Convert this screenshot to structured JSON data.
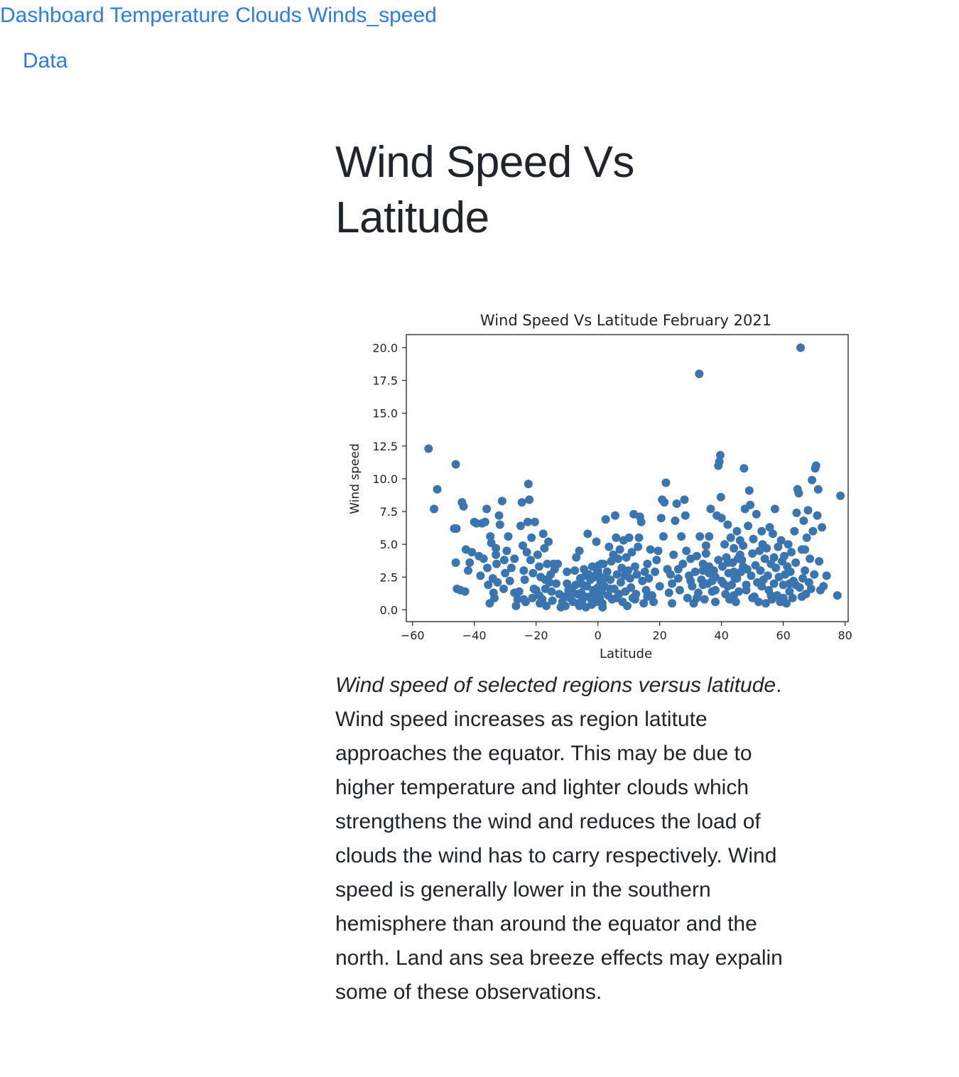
{
  "nav": {
    "links": [
      "Dashboard",
      "Temperature",
      "Clouds",
      "Winds_speed"
    ],
    "data_link": "Data"
  },
  "page": {
    "title": "Wind Speed Vs Latitude"
  },
  "caption": {
    "emphasis": "Wind speed of selected regions versus latitude",
    "text": ". Wind speed increases as region latitute approaches the equator. This may be due to higher temperature and lighter clouds which strengthens the wind and reduces the load of clouds the wind has to carry respectively. Wind speed is generally lower in the southern hemisphere than around the equator and the north. Land ans sea breeze effects may expalin some of these observations."
  },
  "colors": {
    "link": "#2f7be6",
    "marker": "#3a75b0",
    "text": "#212529"
  },
  "chart_data": {
    "type": "scatter",
    "title": "Wind Speed Vs Latitude February 2021",
    "xlabel": "Latitude",
    "ylabel": "Wind speed",
    "xlim": [
      -62,
      81
    ],
    "ylim": [
      -0.9,
      21
    ],
    "xticks": [
      -60,
      -40,
      -20,
      0,
      20,
      40,
      60,
      80
    ],
    "xtick_labels": [
      "−60",
      "−40",
      "−20",
      "0",
      "20",
      "40",
      "60",
      "80"
    ],
    "yticks": [
      0,
      2.5,
      5,
      7.5,
      10,
      12.5,
      15,
      17.5,
      20
    ],
    "ytick_labels": [
      "0.0",
      "2.5",
      "5.0",
      "7.5",
      "10.0",
      "12.5",
      "15.0",
      "17.5",
      "20.0"
    ],
    "grid": false,
    "legend": "none",
    "points": [
      [
        -54.8,
        12.3
      ],
      [
        -53,
        7.7
      ],
      [
        -52,
        9.2
      ],
      [
        -46,
        11.1
      ],
      [
        -46.5,
        6.2
      ],
      [
        -45.8,
        6.2
      ],
      [
        -44,
        8.2
      ],
      [
        -43.5,
        7.9
      ],
      [
        -46,
        3.6
      ],
      [
        -45.6,
        1.6
      ],
      [
        -44.5,
        1.5
      ],
      [
        -43,
        1.4
      ],
      [
        -42.7,
        4.6
      ],
      [
        -42,
        3.0
      ],
      [
        -41.5,
        3.6
      ],
      [
        -40.8,
        4.4
      ],
      [
        -40,
        6.7
      ],
      [
        -39.3,
        6.6
      ],
      [
        -38.5,
        4.1
      ],
      [
        -38,
        2.6
      ],
      [
        -37.5,
        6.6
      ],
      [
        -36.5,
        6.7
      ],
      [
        -36,
        7.7
      ],
      [
        -35.8,
        3.2
      ],
      [
        -35.5,
        1.9
      ],
      [
        -35,
        0.5
      ],
      [
        -34.8,
        5.6
      ],
      [
        -34.5,
        5.1
      ],
      [
        -34,
        2.4
      ],
      [
        -33.8,
        1.3
      ],
      [
        -33.5,
        0.9
      ],
      [
        -33,
        4.2
      ],
      [
        -32.8,
        3.5
      ],
      [
        -32.5,
        2.1
      ],
      [
        -32,
        7.2
      ],
      [
        -31.7,
        6.5
      ],
      [
        -31,
        8.3
      ],
      [
        -30.5,
        1.6
      ],
      [
        -30.3,
        3.8
      ],
      [
        -30,
        2.8
      ],
      [
        -29.5,
        4.5
      ],
      [
        -29,
        5.6
      ],
      [
        -28.5,
        2.2
      ],
      [
        -28,
        3.2
      ],
      [
        -27,
        3.9
      ],
      [
        -26.5,
        0.3
      ],
      [
        -26,
        0.8
      ],
      [
        -25.5,
        1.4
      ],
      [
        -25,
        6.4
      ],
      [
        -24.6,
        8.2
      ],
      [
        -24.3,
        4.9
      ],
      [
        -24,
        3.0
      ],
      [
        -23.7,
        2.3
      ],
      [
        -23.4,
        0.6
      ],
      [
        -23,
        4.4
      ],
      [
        -22.7,
        6.7
      ],
      [
        -22.5,
        9.6
      ],
      [
        -22.2,
        8.4
      ],
      [
        -21.8,
        3.8
      ],
      [
        -21.5,
        5.5
      ],
      [
        -21.2,
        0.9
      ],
      [
        -21,
        2.8
      ],
      [
        -20.7,
        1.6
      ],
      [
        -20.4,
        6.7
      ],
      [
        -20,
        1.5
      ],
      [
        -19.5,
        4.2
      ],
      [
        -19,
        3.3
      ],
      [
        -18.8,
        0.5
      ],
      [
        -18.5,
        2.5
      ],
      [
        -18,
        0.8
      ],
      [
        -17.7,
        5.8
      ],
      [
        -17.3,
        4.7
      ],
      [
        -17,
        1.6
      ],
      [
        -16.7,
        0.3
      ],
      [
        -16.4,
        3.5
      ],
      [
        -16,
        5.2
      ],
      [
        -15.7,
        2.1
      ],
      [
        -15.3,
        2.7
      ],
      [
        -15,
        1.4
      ],
      [
        -14.7,
        0.7
      ],
      [
        -14.4,
        3.5
      ],
      [
        -14,
        3.1
      ],
      [
        -13.5,
        2.0
      ],
      [
        -13,
        3.5
      ],
      [
        -12.5,
        1.2
      ],
      [
        -12,
        0.2
      ],
      [
        -11.5,
        0.6
      ],
      [
        -11,
        1.0
      ],
      [
        -10.5,
        0.3
      ],
      [
        -10,
        2.9
      ],
      [
        -9.5,
        1.5
      ],
      [
        -9,
        0.9
      ],
      [
        -8.5,
        1.6
      ],
      [
        -8,
        0.6
      ],
      [
        -7.5,
        3.0
      ],
      [
        -7.2,
        1.9
      ],
      [
        -7,
        4.0
      ],
      [
        -6.6,
        1.2
      ],
      [
        -6.3,
        0.5
      ],
      [
        -6,
        4.5
      ],
      [
        -5.7,
        2.4
      ],
      [
        -5.4,
        1.3
      ],
      [
        -5.1,
        0.7
      ],
      [
        -4.8,
        1.9
      ],
      [
        -4.5,
        3.1
      ],
      [
        -4.2,
        1.0
      ],
      [
        -3.9,
        0.2
      ],
      [
        -3.6,
        1.8
      ],
      [
        -3.3,
        5.8
      ],
      [
        -3,
        2.7
      ],
      [
        -2.7,
        1.0
      ],
      [
        -2.4,
        2.3
      ],
      [
        -2.1,
        0.8
      ],
      [
        -1.8,
        3.3
      ],
      [
        -1.5,
        1.5
      ],
      [
        -1.2,
        2.5
      ],
      [
        -0.9,
        1.2
      ],
      [
        -0.6,
        0.6
      ],
      [
        -0.3,
        2.8
      ],
      [
        0,
        1.7
      ],
      [
        0.3,
        3.4
      ],
      [
        0.6,
        0.9
      ],
      [
        0.9,
        2.2
      ],
      [
        1.2,
        1.4
      ],
      [
        1.5,
        0.2
      ],
      [
        1.8,
        3.5
      ],
      [
        2.1,
        1.8
      ],
      [
        2.5,
        6.9
      ],
      [
        -0.5,
        5.2
      ],
      [
        0,
        3.0
      ],
      [
        0.4,
        2.6
      ],
      [
        0.8,
        1.9
      ],
      [
        1.1,
        3.5
      ],
      [
        1.4,
        0.5
      ],
      [
        3,
        2.9
      ],
      [
        3.3,
        1.1
      ],
      [
        3.6,
        4.8
      ],
      [
        4,
        2.3
      ],
      [
        4.3,
        3.7
      ],
      [
        4.6,
        0.8
      ],
      [
        5,
        4.2
      ],
      [
        5.3,
        1.6
      ],
      [
        5.6,
        7.2
      ],
      [
        5.9,
        5.5
      ],
      [
        6.2,
        2.7
      ],
      [
        6.5,
        3.9
      ],
      [
        6.8,
        1.2
      ],
      [
        7.1,
        4.6
      ],
      [
        7.4,
        2.1
      ],
      [
        7.7,
        3.2
      ],
      [
        8,
        0.6
      ],
      [
        8.3,
        5.3
      ],
      [
        8.6,
        2.6
      ],
      [
        8.9,
        1.4
      ],
      [
        9.2,
        4.0
      ],
      [
        9.5,
        0.3
      ],
      [
        9.8,
        3.0
      ],
      [
        10.1,
        5.5
      ],
      [
        10.4,
        2.4
      ],
      [
        10.7,
        1.7
      ],
      [
        11,
        4.4
      ],
      [
        11.3,
        0.9
      ],
      [
        11.6,
        7.3
      ],
      [
        12,
        3.3
      ],
      [
        12.3,
        1.2
      ],
      [
        12.6,
        2.7
      ],
      [
        13,
        4.8
      ],
      [
        13.3,
        5.5
      ],
      [
        13.6,
        7.1
      ],
      [
        14,
        6.7
      ],
      [
        14.4,
        2.2
      ],
      [
        14.8,
        0.5
      ],
      [
        15.2,
        2.9
      ],
      [
        15.6,
        1.5
      ],
      [
        16,
        3.5
      ],
      [
        16.5,
        2.4
      ],
      [
        17,
        4.6
      ],
      [
        17.5,
        1.1
      ],
      [
        18,
        0.6
      ],
      [
        18.5,
        2.9
      ],
      [
        19,
        3.8
      ],
      [
        19.5,
        4.5
      ],
      [
        20,
        1.8
      ],
      [
        20.5,
        7.0
      ],
      [
        20.8,
        8.4
      ],
      [
        21.2,
        5.6
      ],
      [
        21.5,
        8.2
      ],
      [
        22,
        9.7
      ],
      [
        22.5,
        3.1
      ],
      [
        23,
        1.3
      ],
      [
        23.5,
        2.7
      ],
      [
        24,
        0.5
      ],
      [
        24.5,
        4.2
      ],
      [
        25,
        6.8
      ],
      [
        25.5,
        8.1
      ],
      [
        26,
        2.4
      ],
      [
        26.5,
        1.5
      ],
      [
        27,
        5.6
      ],
      [
        27.5,
        3.5
      ],
      [
        28,
        8.4
      ],
      [
        28.3,
        7.2
      ],
      [
        28.6,
        4.5
      ],
      [
        29,
        0.9
      ],
      [
        29.5,
        2.6
      ],
      [
        30,
        3.9
      ],
      [
        30.5,
        1.8
      ],
      [
        31,
        0.5
      ],
      [
        31.5,
        2.9
      ],
      [
        32,
        4.1
      ],
      [
        32.5,
        1.3
      ],
      [
        32.8,
        18.0
      ],
      [
        33,
        5.6
      ],
      [
        33.5,
        2.3
      ],
      [
        34,
        3.5
      ],
      [
        34.5,
        0.8
      ],
      [
        35,
        4.3
      ],
      [
        35.5,
        2.0
      ],
      [
        36,
        5.6
      ],
      [
        36.5,
        7.7
      ],
      [
        37,
        1.4
      ],
      [
        37.5,
        3.0
      ],
      [
        38,
        2.5
      ],
      [
        38.5,
        7.2
      ],
      [
        39,
        11.0
      ],
      [
        39.3,
        11.3
      ],
      [
        39.6,
        11.8
      ],
      [
        39.8,
        8.6
      ],
      [
        40,
        7.0
      ],
      [
        40.3,
        3.3
      ],
      [
        40.6,
        2.0
      ],
      [
        41,
        5.0
      ],
      [
        41.3,
        1.2
      ],
      [
        41.6,
        4.0
      ],
      [
        42,
        6.5
      ],
      [
        42.3,
        2.8
      ],
      [
        42.6,
        0.8
      ],
      [
        43,
        5.5
      ],
      [
        43.3,
        1.9
      ],
      [
        43.6,
        3.6
      ],
      [
        44,
        4.7
      ],
      [
        44.3,
        2.4
      ],
      [
        44.6,
        0.6
      ],
      [
        45,
        6.0
      ],
      [
        45.3,
        3.9
      ],
      [
        45.6,
        1.4
      ],
      [
        46,
        5.3
      ],
      [
        46.3,
        2.9
      ],
      [
        46.6,
        3.8
      ],
      [
        47,
        4.9
      ],
      [
        47.3,
        10.8
      ],
      [
        47.6,
        7.7
      ],
      [
        48,
        1.5
      ],
      [
        48.3,
        3.1
      ],
      [
        48.6,
        6.4
      ],
      [
        49,
        9.1
      ],
      [
        49.3,
        8.0
      ],
      [
        49.6,
        2.6
      ],
      [
        50,
        4.3
      ],
      [
        50.3,
        5.4
      ],
      [
        50.6,
        1.0
      ],
      [
        51,
        3.4
      ],
      [
        51.3,
        7.3
      ],
      [
        51.6,
        2.1
      ],
      [
        52,
        0.6
      ],
      [
        52.3,
        4.5
      ],
      [
        52.6,
        3.0
      ],
      [
        53,
        1.8
      ],
      [
        53.3,
        5.0
      ],
      [
        53.6,
        2.3
      ],
      [
        54,
        3.9
      ],
      [
        54.3,
        0.5
      ],
      [
        54.6,
        4.7
      ],
      [
        55,
        2.6
      ],
      [
        55.3,
        1.5
      ],
      [
        55.6,
        6.3
      ],
      [
        56,
        3.5
      ],
      [
        56.3,
        0.8
      ],
      [
        56.6,
        5.8
      ],
      [
        57,
        2.0
      ],
      [
        57.3,
        7.7
      ],
      [
        57.6,
        3.2
      ],
      [
        58,
        1.1
      ],
      [
        58.3,
        4.8
      ],
      [
        58.6,
        2.5
      ],
      [
        59,
        0.6
      ],
      [
        59.3,
        5.3
      ],
      [
        59.6,
        3.7
      ],
      [
        60,
        1.9
      ],
      [
        60.3,
        4.1
      ],
      [
        60.6,
        2.7
      ],
      [
        61,
        0.5
      ],
      [
        61.3,
        3.3
      ],
      [
        61.6,
        5.0
      ],
      [
        62,
        1.4
      ],
      [
        62.3,
        2.9
      ],
      [
        62.6,
        4.4
      ],
      [
        63,
        0.9
      ],
      [
        63.3,
        2.2
      ],
      [
        63.6,
        6.0
      ],
      [
        64,
        3.6
      ],
      [
        64.3,
        7.4
      ],
      [
        64.6,
        9.2
      ],
      [
        65,
        8.9
      ],
      [
        65.3,
        1.7
      ],
      [
        65.6,
        20.0
      ],
      [
        66,
        4.6
      ],
      [
        66.3,
        2.4
      ],
      [
        66.6,
        6.8
      ],
      [
        67,
        3.0
      ],
      [
        67.3,
        1.2
      ],
      [
        67.6,
        5.5
      ],
      [
        68,
        7.6
      ],
      [
        68.3,
        2.1
      ],
      [
        68.6,
        3.9
      ],
      [
        69,
        1.6
      ],
      [
        69.3,
        9.9
      ],
      [
        69.6,
        6.0
      ],
      [
        70,
        2.7
      ],
      [
        70.3,
        10.8
      ],
      [
        70.6,
        11.0
      ],
      [
        71,
        7.2
      ],
      [
        71.3,
        9.2
      ],
      [
        71.6,
        3.7
      ],
      [
        72,
        1.5
      ],
      [
        72.5,
        6.3
      ],
      [
        73,
        1.8
      ],
      [
        74,
        2.6
      ],
      [
        77.5,
        1.1
      ],
      [
        78.5,
        8.7
      ],
      [
        57,
        4.0
      ],
      [
        46,
        4.2
      ],
      [
        53,
        6.0
      ],
      [
        67,
        4.6
      ],
      [
        36,
        2.8
      ],
      [
        38,
        1.5
      ],
      [
        42,
        1.8
      ],
      [
        44,
        2.9
      ],
      [
        48,
        1.9
      ],
      [
        50,
        0.9
      ],
      [
        56,
        1.1
      ],
      [
        60,
        0.9
      ],
      [
        62,
        2.0
      ],
      [
        64,
        1.9
      ],
      [
        66,
        1.0
      ],
      [
        -10,
        2.0
      ],
      [
        -8,
        1.3
      ],
      [
        -6,
        0.3
      ],
      [
        -4,
        2.6
      ],
      [
        -2,
        0.4
      ],
      [
        2,
        2.4
      ],
      [
        4,
        1.6
      ],
      [
        6,
        0.9
      ],
      [
        34,
        1.9
      ],
      [
        36,
        3.3
      ],
      [
        38,
        0.6
      ],
      [
        40,
        2.2
      ],
      [
        42,
        3.6
      ],
      [
        44,
        1.1
      ],
      [
        45,
        2.4
      ],
      [
        47,
        3.3
      ],
      [
        -37,
        3.9
      ],
      [
        -33,
        4.7
      ],
      [
        -27,
        1.3
      ],
      [
        -24,
        0.8
      ],
      [
        -19,
        1.1
      ],
      [
        -17,
        2.3
      ],
      [
        12,
        0.8
      ],
      [
        16,
        1.0
      ],
      [
        24,
        2.0
      ],
      [
        26,
        3.1
      ],
      [
        30,
        2.2
      ],
      [
        32,
        0.9
      ],
      [
        34,
        3.0
      ],
      [
        35,
        4.9
      ],
      [
        37,
        2.2
      ],
      [
        39,
        3.8
      ]
    ]
  }
}
